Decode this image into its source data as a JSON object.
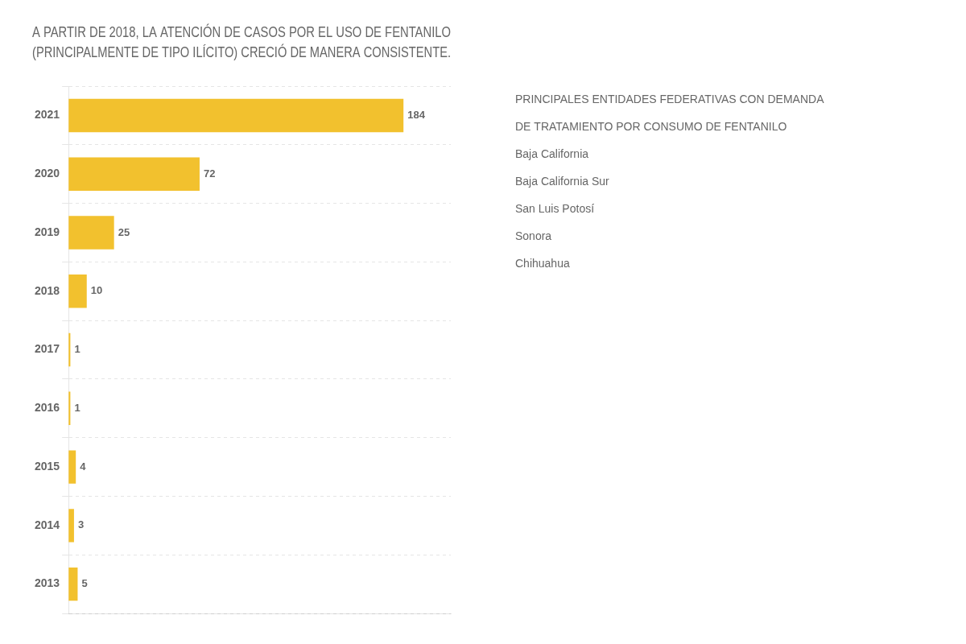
{
  "chart_data": {
    "type": "bar",
    "orientation": "horizontal",
    "title": "A PARTIR DE 2018, LA ATENCIÓN DE CASOS POR EL USO DE FENTANILO",
    "subtitle": "(PRINCIPALMENTE DE TIPO ILÍCITO) CRECIÓ DE MANERA CONSISTENTE.",
    "categories": [
      "2013",
      "2014",
      "2015",
      "2016",
      "2017",
      "2018",
      "2019",
      "2020",
      "2021"
    ],
    "values": [
      5,
      3,
      4,
      1,
      1,
      10,
      25,
      72,
      184
    ],
    "color": "#F2C12E",
    "xlim": [
      0,
      210
    ],
    "tick_labels": "y",
    "grid": true,
    "data_labels": true,
    "annotations": [
      "PRINCIPALES ENTIDADES FEDERATIVAS CON DEMANDA",
      "DE TRATAMIENTO POR CONSUMO DE FENTANILO",
      "Baja California",
      "Baja California Sur",
      "San Luis Potosí",
      "Sonora",
      "Chihuahua"
    ]
  }
}
